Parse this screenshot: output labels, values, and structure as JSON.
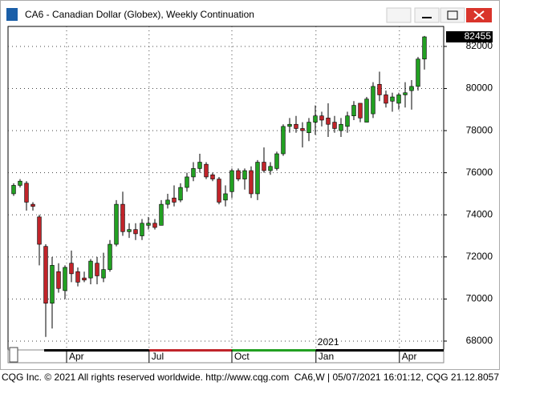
{
  "chart_data": {
    "type": "candlestick",
    "title": "CA6 - Canadian Dollar (Globex), Weekly Continuation",
    "footer_left": "CQG Inc. © 2021 All rights reserved worldwide. http://www.cqg.com",
    "footer_right": "CA6,W | 05/07/2021 16:01:12, CQG 21.12.8057",
    "last_price": 82455,
    "up_color": "#22a022",
    "down_color": "#c0242a",
    "open": [
      75000,
      75400,
      75500,
      74500,
      73900,
      72500,
      69800,
      71300,
      70400,
      71700,
      71300,
      71000,
      71000,
      71700,
      71000,
      71400,
      72600,
      74500,
      73200,
      73300,
      73000,
      73500,
      73600,
      73500,
      74500,
      74800,
      74700,
      75300,
      75800,
      76200,
      76400,
      75900,
      75700,
      74700,
      75100,
      76100,
      75700,
      76100,
      75000,
      76500,
      76100,
      76200,
      76900,
      78200,
      78300,
      78100,
      77900,
      78400,
      78700,
      78600,
      78400,
      78000,
      78200,
      78700,
      79300,
      78400,
      78800,
      80200,
      79700,
      79400,
      79300,
      79700,
      79900,
      80100,
      81400
    ],
    "high": [
      75500,
      75700,
      75600,
      74600,
      74000,
      72600,
      72000,
      71700,
      71600,
      72300,
      71500,
      71300,
      71900,
      72000,
      72200,
      72800,
      74700,
      75100,
      73600,
      73600,
      73800,
      73900,
      73800,
      74700,
      75000,
      75400,
      75500,
      76000,
      76500,
      76900,
      76500,
      76000,
      75800,
      75400,
      76200,
      76200,
      76200,
      76300,
      76600,
      77200,
      76500,
      77000,
      78300,
      78600,
      78700,
      78400,
      78600,
      79200,
      78900,
      79300,
      78700,
      78600,
      78900,
      79400,
      79300,
      79600,
      80300,
      80800,
      79900,
      79800,
      79800,
      80300,
      80400,
      81500,
      82500
    ],
    "low": [
      74900,
      75300,
      74200,
      74200,
      71600,
      68200,
      68600,
      70300,
      70000,
      70800,
      70600,
      70800,
      70700,
      70700,
      70800,
      71300,
      72500,
      73000,
      72900,
      72800,
      72800,
      73300,
      73300,
      73500,
      74300,
      74400,
      74600,
      75100,
      75600,
      76000,
      75700,
      75600,
      74500,
      74400,
      74800,
      75600,
      75200,
      74800,
      74700,
      76000,
      75900,
      76100,
      76800,
      77900,
      77900,
      77200,
      77500,
      77800,
      78200,
      77700,
      77900,
      77700,
      77900,
      78500,
      78400,
      78400,
      78600,
      79400,
      79100,
      78900,
      79000,
      79100,
      79000,
      79900,
      80900
    ],
    "close": [
      75400,
      75600,
      74600,
      74400,
      72600,
      69800,
      71600,
      70500,
      71500,
      71200,
      70800,
      70900,
      71800,
      71100,
      71400,
      72600,
      74500,
      73200,
      73300,
      73100,
      73600,
      73600,
      73400,
      74500,
      74700,
      74600,
      75300,
      75800,
      76200,
      76500,
      75800,
      75700,
      74600,
      75000,
      76100,
      75700,
      76100,
      75000,
      76500,
      76100,
      76300,
      76900,
      78200,
      78300,
      78100,
      78000,
      78400,
      78700,
      78500,
      78300,
      78100,
      78300,
      78700,
      79200,
      78600,
      79500,
      80100,
      79700,
      79300,
      79600,
      79700,
      79800,
      80100,
      81400,
      82455
    ],
    "xlim": [
      -0.875,
      67
    ],
    "xticks": [
      {
        "value": 8.25,
        "label": "Apr"
      },
      {
        "value": 21.1,
        "label": "Jul"
      },
      {
        "value": 34,
        "label": "Oct"
      },
      {
        "value": 47.1,
        "label": "Jan"
      },
      {
        "value": 60.1,
        "label": "Apr"
      }
    ],
    "year_label": "2021",
    "ylim": [
      67580,
      82950
    ],
    "yticks": [
      68000,
      70000,
      72000,
      74000,
      76000,
      78000,
      80000,
      82000
    ],
    "grid": true
  }
}
